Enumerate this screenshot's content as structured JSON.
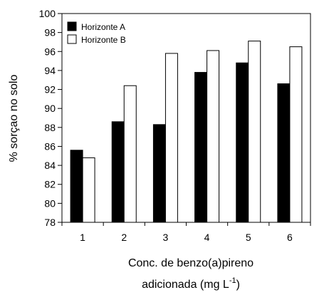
{
  "chart_data": {
    "type": "bar",
    "categories": [
      "1",
      "2",
      "3",
      "4",
      "5",
      "6"
    ],
    "series": [
      {
        "name": "Horizonte A",
        "values": [
          85.6,
          88.6,
          88.3,
          93.8,
          94.8,
          92.6
        ],
        "color": "#000000"
      },
      {
        "name": "Horizonte B",
        "values": [
          84.8,
          92.4,
          95.8,
          96.1,
          97.1,
          96.5
        ],
        "color": "#ffffff"
      }
    ],
    "ylabel": "% sorçao no solo",
    "xlabel_line1": "Conc. de benzo(a)pireno",
    "xlabel_line2_prefix": "adicionada (mg L",
    "xlabel_line2_sup": "-1",
    "xlabel_line2_suffix": ")",
    "ylim": [
      78,
      100
    ],
    "yticks": [
      78,
      80,
      82,
      84,
      86,
      88,
      90,
      92,
      94,
      96,
      98,
      100
    ],
    "legend_position": "top-left",
    "grid": false
  }
}
